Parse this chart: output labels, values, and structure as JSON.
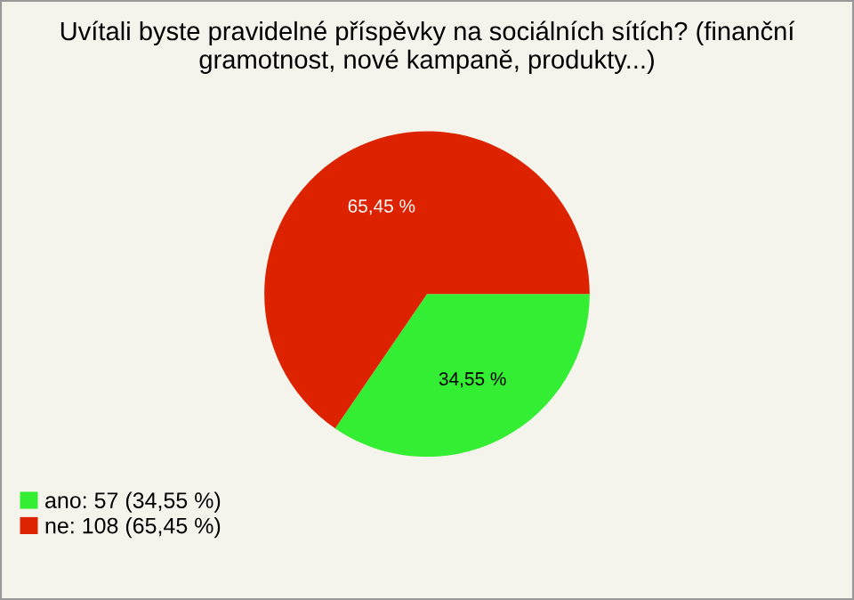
{
  "chart_data": {
    "type": "pie",
    "title": "Uvítali byste pravidelné příspěvky na sociálních sítích? (finanční gramotnost, nové kampaně, produkty...)",
    "categories": [
      "ano: 57 (34,55 %)",
      "ne: 108 (65,45 %)"
    ],
    "values": [
      34.55,
      65.45
    ],
    "value_labels": [
      "34,55 %",
      "65,45 %"
    ],
    "colors": [
      "#33ee33",
      "#dd2200"
    ],
    "legend": "bottom left"
  }
}
